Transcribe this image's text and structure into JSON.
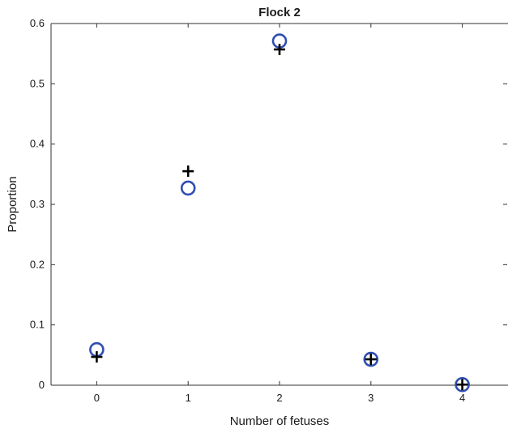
{
  "chart_data": {
    "type": "scatter",
    "title": "Flock 2",
    "xlabel": "Number of fetuses",
    "ylabel": "Proportion",
    "xlim": [
      -0.5,
      4.5
    ],
    "ylim": [
      0,
      0.6
    ],
    "xticks": [
      0,
      1,
      2,
      3,
      4
    ],
    "xtick_labels": [
      "0",
      "1",
      "2",
      "3",
      "4"
    ],
    "yticks": [
      0,
      0.1,
      0.2,
      0.3,
      0.4,
      0.5,
      0.6
    ],
    "ytick_labels": [
      "0",
      "0.1",
      "0.2",
      "0.3",
      "0.4",
      "0.5",
      "0.6"
    ],
    "grid": false,
    "legend": "none",
    "series": [
      {
        "marker": "circle",
        "color": "#2f4fb0",
        "x": [
          0,
          1,
          2,
          3,
          4
        ],
        "values": [
          0.059,
          0.327,
          0.571,
          0.043,
          0.001
        ]
      },
      {
        "marker": "plus",
        "color": "#000000",
        "x": [
          0,
          1,
          2,
          3,
          4
        ],
        "values": [
          0.047,
          0.355,
          0.557,
          0.043,
          0.001
        ]
      }
    ]
  }
}
